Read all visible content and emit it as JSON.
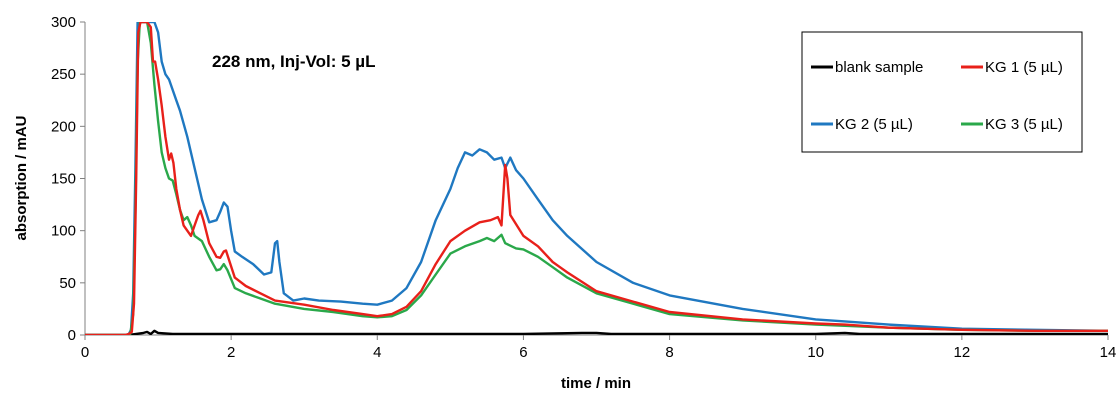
{
  "chart_data": {
    "type": "line",
    "title": "",
    "annotation": "228 nm, Inj-Vol: 5 µL",
    "xlabel": "time / min",
    "ylabel": "absorption / mAU",
    "xlim": [
      0,
      14
    ],
    "ylim": [
      0,
      300
    ],
    "x_ticks": [
      0,
      2,
      4,
      6,
      8,
      10,
      12,
      14
    ],
    "y_ticks": [
      0,
      50,
      100,
      150,
      200,
      250,
      300
    ],
    "grid": false,
    "legend_position": "top-right",
    "series": [
      {
        "name": "blank sample",
        "color": "#000000",
        "points": [
          [
            0,
            0
          ],
          [
            0.6,
            0
          ],
          [
            0.7,
            1
          ],
          [
            0.8,
            2
          ],
          [
            0.85,
            3
          ],
          [
            0.9,
            1
          ],
          [
            0.95,
            4
          ],
          [
            1.0,
            2
          ],
          [
            1.2,
            1
          ],
          [
            1.5,
            1
          ],
          [
            2,
            1
          ],
          [
            3,
            1
          ],
          [
            4,
            1
          ],
          [
            5,
            1
          ],
          [
            6,
            1
          ],
          [
            6.8,
            2
          ],
          [
            7,
            2
          ],
          [
            7.2,
            1
          ],
          [
            8,
            1
          ],
          [
            9,
            1
          ],
          [
            10,
            1
          ],
          [
            10.4,
            2
          ],
          [
            10.6,
            1
          ],
          [
            12,
            1
          ],
          [
            14,
            1
          ]
        ]
      },
      {
        "name": "KG 1 (5 µL)",
        "color": "#e8201a",
        "points": [
          [
            0,
            0
          ],
          [
            0.55,
            0
          ],
          [
            0.6,
            1
          ],
          [
            0.64,
            3
          ],
          [
            0.67,
            30
          ],
          [
            0.7,
            150
          ],
          [
            0.73,
            290
          ],
          [
            0.76,
            300
          ],
          [
            0.85,
            300
          ],
          [
            0.9,
            295
          ],
          [
            0.93,
            262
          ],
          [
            0.96,
            262
          ],
          [
            1.0,
            245
          ],
          [
            1.05,
            220
          ],
          [
            1.1,
            190
          ],
          [
            1.15,
            168
          ],
          [
            1.18,
            174
          ],
          [
            1.21,
            165
          ],
          [
            1.25,
            140
          ],
          [
            1.3,
            120
          ],
          [
            1.35,
            105
          ],
          [
            1.4,
            100
          ],
          [
            1.45,
            95
          ],
          [
            1.5,
            105
          ],
          [
            1.55,
            115
          ],
          [
            1.58,
            119
          ],
          [
            1.62,
            110
          ],
          [
            1.7,
            88
          ],
          [
            1.8,
            75
          ],
          [
            1.85,
            74
          ],
          [
            1.9,
            80
          ],
          [
            1.93,
            81
          ],
          [
            1.97,
            72
          ],
          [
            2.05,
            55
          ],
          [
            2.2,
            47
          ],
          [
            2.4,
            40
          ],
          [
            2.6,
            33
          ],
          [
            3,
            29
          ],
          [
            3.4,
            24
          ],
          [
            3.8,
            20
          ],
          [
            4.0,
            18
          ],
          [
            4.2,
            20
          ],
          [
            4.4,
            27
          ],
          [
            4.6,
            42
          ],
          [
            4.8,
            68
          ],
          [
            5.0,
            90
          ],
          [
            5.2,
            100
          ],
          [
            5.4,
            108
          ],
          [
            5.55,
            110
          ],
          [
            5.65,
            113
          ],
          [
            5.7,
            105
          ],
          [
            5.75,
            163
          ],
          [
            5.78,
            150
          ],
          [
            5.82,
            115
          ],
          [
            6.0,
            95
          ],
          [
            6.2,
            85
          ],
          [
            6.4,
            70
          ],
          [
            6.5,
            65
          ],
          [
            6.6,
            60
          ],
          [
            7.0,
            42
          ],
          [
            8.0,
            22
          ],
          [
            9.0,
            15
          ],
          [
            10.0,
            11
          ],
          [
            10.4,
            10
          ],
          [
            11.0,
            7
          ],
          [
            12.0,
            5
          ],
          [
            13.0,
            4
          ],
          [
            14.0,
            4
          ]
        ]
      },
      {
        "name": "KG 2 (5 µL)",
        "color": "#1f78c1",
        "points": [
          [
            0,
            0
          ],
          [
            0.55,
            0
          ],
          [
            0.6,
            1
          ],
          [
            0.63,
            5
          ],
          [
            0.66,
            40
          ],
          [
            0.69,
            160
          ],
          [
            0.72,
            300
          ],
          [
            0.85,
            300
          ],
          [
            0.95,
            300
          ],
          [
            1.0,
            290
          ],
          [
            1.05,
            262
          ],
          [
            1.1,
            250
          ],
          [
            1.15,
            245
          ],
          [
            1.25,
            225
          ],
          [
            1.3,
            215
          ],
          [
            1.4,
            190
          ],
          [
            1.5,
            160
          ],
          [
            1.6,
            130
          ],
          [
            1.7,
            108
          ],
          [
            1.8,
            110
          ],
          [
            1.85,
            118
          ],
          [
            1.9,
            127
          ],
          [
            1.95,
            123
          ],
          [
            2.0,
            100
          ],
          [
            2.05,
            80
          ],
          [
            2.15,
            75
          ],
          [
            2.3,
            68
          ],
          [
            2.45,
            58
          ],
          [
            2.55,
            60
          ],
          [
            2.6,
            88
          ],
          [
            2.63,
            90
          ],
          [
            2.66,
            70
          ],
          [
            2.72,
            40
          ],
          [
            2.85,
            33
          ],
          [
            3.0,
            35
          ],
          [
            3.2,
            33
          ],
          [
            3.5,
            32
          ],
          [
            3.8,
            30
          ],
          [
            4.0,
            29
          ],
          [
            4.2,
            33
          ],
          [
            4.4,
            45
          ],
          [
            4.6,
            70
          ],
          [
            4.8,
            110
          ],
          [
            5.0,
            140
          ],
          [
            5.1,
            160
          ],
          [
            5.2,
            175
          ],
          [
            5.3,
            172
          ],
          [
            5.4,
            178
          ],
          [
            5.5,
            175
          ],
          [
            5.6,
            168
          ],
          [
            5.7,
            170
          ],
          [
            5.75,
            160
          ],
          [
            5.82,
            170
          ],
          [
            5.9,
            158
          ],
          [
            6.0,
            150
          ],
          [
            6.2,
            130
          ],
          [
            6.4,
            110
          ],
          [
            6.6,
            95
          ],
          [
            7.0,
            70
          ],
          [
            7.5,
            50
          ],
          [
            8,
            38
          ],
          [
            9,
            25
          ],
          [
            10,
            15
          ],
          [
            10.4,
            13
          ],
          [
            11,
            10
          ],
          [
            12,
            6
          ],
          [
            13,
            5
          ],
          [
            14,
            4
          ]
        ]
      },
      {
        "name": "KG 3 (5 µL)",
        "color": "#2aa84a",
        "points": [
          [
            0,
            0
          ],
          [
            0.58,
            0
          ],
          [
            0.62,
            1
          ],
          [
            0.66,
            20
          ],
          [
            0.69,
            120
          ],
          [
            0.72,
            260
          ],
          [
            0.75,
            300
          ],
          [
            0.85,
            300
          ],
          [
            0.9,
            280
          ],
          [
            0.95,
            240
          ],
          [
            1.0,
            205
          ],
          [
            1.05,
            175
          ],
          [
            1.1,
            160
          ],
          [
            1.15,
            150
          ],
          [
            1.2,
            148
          ],
          [
            1.25,
            135
          ],
          [
            1.3,
            120
          ],
          [
            1.35,
            110
          ],
          [
            1.4,
            113
          ],
          [
            1.45,
            105
          ],
          [
            1.5,
            95
          ],
          [
            1.6,
            90
          ],
          [
            1.7,
            75
          ],
          [
            1.8,
            62
          ],
          [
            1.85,
            63
          ],
          [
            1.9,
            68
          ],
          [
            1.95,
            62
          ],
          [
            2.05,
            45
          ],
          [
            2.2,
            40
          ],
          [
            2.4,
            35
          ],
          [
            2.6,
            30
          ],
          [
            3.0,
            25
          ],
          [
            3.4,
            22
          ],
          [
            3.8,
            18
          ],
          [
            4.0,
            17
          ],
          [
            4.2,
            18
          ],
          [
            4.4,
            24
          ],
          [
            4.6,
            38
          ],
          [
            4.8,
            58
          ],
          [
            5.0,
            78
          ],
          [
            5.2,
            85
          ],
          [
            5.4,
            90
          ],
          [
            5.5,
            93
          ],
          [
            5.6,
            90
          ],
          [
            5.7,
            96
          ],
          [
            5.75,
            88
          ],
          [
            5.9,
            83
          ],
          [
            6.0,
            82
          ],
          [
            6.2,
            75
          ],
          [
            6.4,
            65
          ],
          [
            6.6,
            55
          ],
          [
            7.0,
            40
          ],
          [
            8.0,
            20
          ],
          [
            9.0,
            14
          ],
          [
            10.0,
            10
          ],
          [
            11.0,
            7
          ],
          [
            12.0,
            5
          ],
          [
            13.0,
            4
          ],
          [
            14.0,
            4
          ]
        ]
      }
    ]
  }
}
